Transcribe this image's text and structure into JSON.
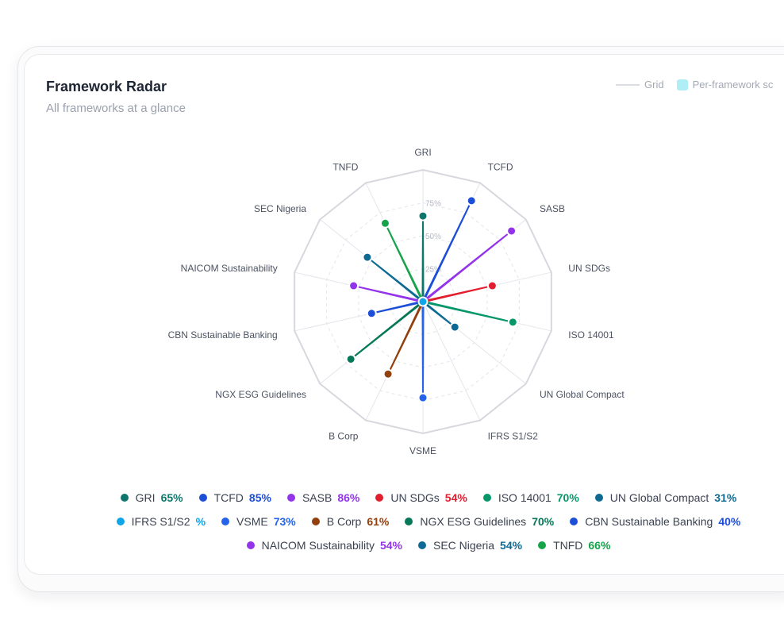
{
  "card": {
    "title": "Framework Radar",
    "subtitle": "All frameworks at a glance"
  },
  "top_legend": {
    "grid_label": "Grid",
    "area_label": "Per-framework sc"
  },
  "chart_data": {
    "type": "radar",
    "max": 100,
    "ring_labels": [
      "25%",
      "50%",
      "75%"
    ],
    "axes": [
      {
        "name": "GRI",
        "value": 65,
        "value_label": "65%",
        "color": "#0f766e"
      },
      {
        "name": "TCFD",
        "value": 85,
        "value_label": "85%",
        "color": "#1d4ed8"
      },
      {
        "name": "SASB",
        "value": 86,
        "value_label": "86%",
        "color": "#9333ea"
      },
      {
        "name": "UN SDGs",
        "value": 54,
        "value_label": "54%",
        "color": "#e11d2e"
      },
      {
        "name": "ISO 14001",
        "value": 70,
        "value_label": "70%",
        "color": "#059669"
      },
      {
        "name": "UN Global Compact",
        "value": 31,
        "value_label": "31%",
        "color": "#0e6a93"
      },
      {
        "name": "IFRS S1/S2",
        "value": 0,
        "value_label": "%",
        "color": "#0ea5e9"
      },
      {
        "name": "VSME",
        "value": 73,
        "value_label": "73%",
        "color": "#2563eb"
      },
      {
        "name": "B Corp",
        "value": 61,
        "value_label": "61%",
        "color": "#92400e"
      },
      {
        "name": "NGX ESG Guidelines",
        "value": 70,
        "value_label": "70%",
        "color": "#047857"
      },
      {
        "name": "CBN Sustainable Banking",
        "value": 40,
        "value_label": "40%",
        "color": "#1d4ed8"
      },
      {
        "name": "NAICOM Sustainability",
        "value": 54,
        "value_label": "54%",
        "color": "#9333ea"
      },
      {
        "name": "SEC Nigeria",
        "value": 54,
        "value_label": "54%",
        "color": "#0e6a93"
      },
      {
        "name": "TNFD",
        "value": 66,
        "value_label": "66%",
        "color": "#16a34a"
      }
    ]
  }
}
